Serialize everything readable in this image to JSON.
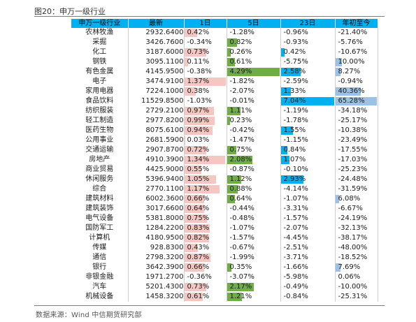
{
  "figure_title": "图20：申万一级行业",
  "source": "数据来源：Wind    中信期货研究部",
  "headers": [
    "申万一级行业",
    "最新",
    "1日",
    "5日",
    "23日",
    "年初至今"
  ],
  "bar_colors": {
    "d1": "#f4c7c3",
    "d5": "#70ad47",
    "d23": "#00b0f0",
    "ytd": "#9bc2e6"
  },
  "rows": [
    {
      "name": "农林牧渔",
      "latest": "2932.6400",
      "d1": "0.42%",
      "d5": "-1.28%",
      "d23": "-0.96%",
      "ytd": "-21.40%"
    },
    {
      "name": "采掘",
      "latest": "3426.7600",
      "d1": "-0.34%",
      "d5": "0.82%",
      "d23": "-0.93%",
      "ytd": "-5.76%"
    },
    {
      "name": "化工",
      "latest": "3187.6000",
      "d1": "0.73%",
      "d5": "0.26%",
      "d23": "0.42%",
      "ytd": "-10.67%"
    },
    {
      "name": "钢铁",
      "latest": "3095.1100",
      "d1": "0.11%",
      "d5": "0.61%",
      "d23": "-5.75%",
      "ytd": "10.00%"
    },
    {
      "name": "有色金属",
      "latest": "4145.9500",
      "d1": "-0.38%",
      "d5": "4.29%",
      "d23": "2.58%",
      "ytd": "8.27%"
    },
    {
      "name": "电子",
      "latest": "3474.9100",
      "d1": "1.37%",
      "d5": "-1.82%",
      "d23": "-2.59%",
      "ytd": "-0.94%"
    },
    {
      "name": "家用电器",
      "latest": "7224.1000",
      "d1": "0.38%",
      "d5": "-2.07%",
      "d23": "1.33%",
      "ytd": "40.36%"
    },
    {
      "name": "食品饮料",
      "latest": "11529.8500",
      "d1": "-1.03%",
      "d5": "-0.01%",
      "d23": "7.04%",
      "ytd": "65.28%"
    },
    {
      "name": "纺织服装",
      "latest": "2729.2100",
      "d1": "0.97%",
      "d5": "1.11%",
      "d23": "-1.19%",
      "ytd": "-34.18%"
    },
    {
      "name": "轻工制造",
      "latest": "2977.8200",
      "d1": "0.99%",
      "d5": "0.23%",
      "d23": "-1.78%",
      "ytd": "-25.17%"
    },
    {
      "name": "医药生物",
      "latest": "8075.6100",
      "d1": "0.94%",
      "d5": "-0.42%",
      "d23": "1.55%",
      "ytd": "-10.38%"
    },
    {
      "name": "公用事业",
      "latest": "2681.5900",
      "d1": "0.03%",
      "d5": "-1.47%",
      "d23": "-1.15%",
      "ytd": "-23.49%"
    },
    {
      "name": "交通运输",
      "latest": "2907.8700",
      "d1": "0.72%",
      "d5": "0.75%",
      "d23": "0.84%",
      "ytd": "-17.55%"
    },
    {
      "name": "房地产",
      "latest": "4910.3900",
      "d1": "1.34%",
      "d5": "2.08%",
      "d23": "1.07%",
      "ytd": "-17.03%"
    },
    {
      "name": "商业贸易",
      "latest": "4425.9000",
      "d1": "0.55%",
      "d5": "-0.87%",
      "d23": "-0.10%",
      "ytd": "-25.23%"
    },
    {
      "name": "休闲服务",
      "latest": "5396.9400",
      "d1": "1.05%",
      "d5": "1.12%",
      "d23": "2.93%",
      "ytd": "-24.48%"
    },
    {
      "name": "综合",
      "latest": "2770.1100",
      "d1": "1.17%",
      "d5": "0.88%",
      "d23": "-4.14%",
      "ytd": "-31.59%"
    },
    {
      "name": "建筑材料",
      "latest": "6002.3600",
      "d1": "0.66%",
      "d5": "0.64%",
      "d23": "-1.07%",
      "ytd": "6.08%"
    },
    {
      "name": "建筑装饰",
      "latest": "3017.6600",
      "d1": "0.64%",
      "d5": "-0.44%",
      "d23": "-3.31%",
      "ytd": "-6.67%"
    },
    {
      "name": "电气设备",
      "latest": "5381.8000",
      "d1": "0.75%",
      "d5": "-0.48%",
      "d23": "-1.57%",
      "ytd": "-24.19%"
    },
    {
      "name": "国防军工",
      "latest": "1284.2200",
      "d1": "0.83%",
      "d5": "-1.07%",
      "d23": "-2.07%",
      "ytd": "-32.13%"
    },
    {
      "name": "计算机",
      "latest": "4180.9500",
      "d1": "0.82%",
      "d5": "-1.57%",
      "d23": "-4.45%",
      "ytd": "-38.17%"
    },
    {
      "name": "传媒",
      "latest": "928.8300",
      "d1": "0.43%",
      "d5": "-0.67%",
      "d23": "-2.51%",
      "ytd": "-48.00%"
    },
    {
      "name": "通信",
      "latest": "2798.3200",
      "d1": "0.87%",
      "d5": "-1.99%",
      "d23": "-3.71%",
      "ytd": "-18.52%"
    },
    {
      "name": "银行",
      "latest": "3642.3900",
      "d1": "0.66%",
      "d5": "0.35%",
      "d23": "-1.66%",
      "ytd": "7.69%"
    },
    {
      "name": "非银金融",
      "latest": "1971.2700",
      "d1": "-0.36%",
      "d5": "-3.07%",
      "d23": "-5.98%",
      "ytd": "0.06%"
    },
    {
      "name": "汽车",
      "latest": "5201.4300",
      "d1": "0.73%",
      "d5": "2.17%",
      "d23": "-0.49%",
      "ytd": "-10.00%"
    },
    {
      "name": "机械设备",
      "latest": "1458.3200",
      "d1": "0.61%",
      "d5": "1.21%",
      "d23": "-0.84%",
      "ytd": "-25.31%"
    }
  ]
}
